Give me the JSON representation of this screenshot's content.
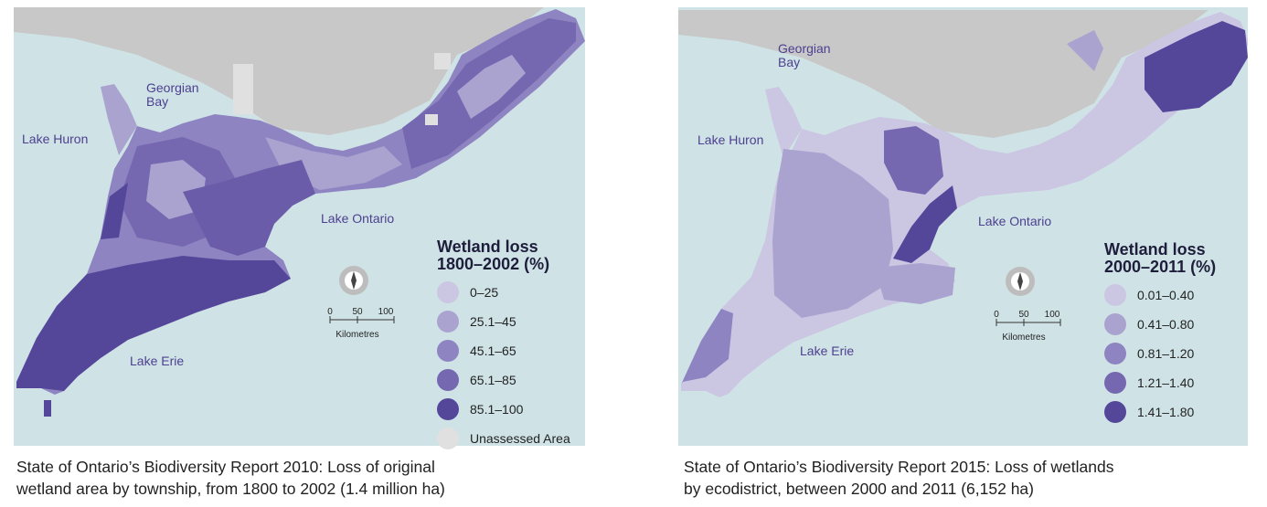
{
  "maps": [
    {
      "water_labels": {
        "georgian_bay": [
          "Georgian",
          "Bay"
        ],
        "lake_huron": "Lake Huron",
        "lake_ontario": "Lake Ontario",
        "lake_erie": "Lake Erie"
      },
      "legend": {
        "title": [
          "Wetland loss",
          "1800–2002 (%)"
        ],
        "items": [
          "0–25",
          "25.1–45",
          "45.1–65",
          "65.1–85",
          "85.1–100",
          "Unassessed Area"
        ]
      },
      "scale": {
        "ticks": [
          "0",
          "50",
          "100"
        ],
        "unit": "Kilometres"
      },
      "caption": [
        "State of Ontario’s Biodiversity Report 2010: Loss of original",
        "wetland area by township, from 1800 to 2002 (1.4 million ha)"
      ]
    },
    {
      "water_labels": {
        "georgian_bay": [
          "Georgian",
          "Bay"
        ],
        "lake_huron": "Lake Huron",
        "lake_ontario": "Lake Ontario",
        "lake_erie": "Lake Erie"
      },
      "legend": {
        "title": [
          "Wetland loss",
          "2000–2011 (%)"
        ],
        "items": [
          "0.01–0.40",
          "0.41–0.80",
          "0.81–1.20",
          "1.21–1.40",
          "1.41–1.80"
        ]
      },
      "scale": {
        "ticks": [
          "0",
          "50",
          "100"
        ],
        "unit": "Kilometres"
      },
      "caption": [
        "State of Ontario’s Biodiversity Report 2015: Loss of wetlands",
        "by ecodistrict, between 2000 and 2011 (6,152 ha)"
      ]
    }
  ]
}
